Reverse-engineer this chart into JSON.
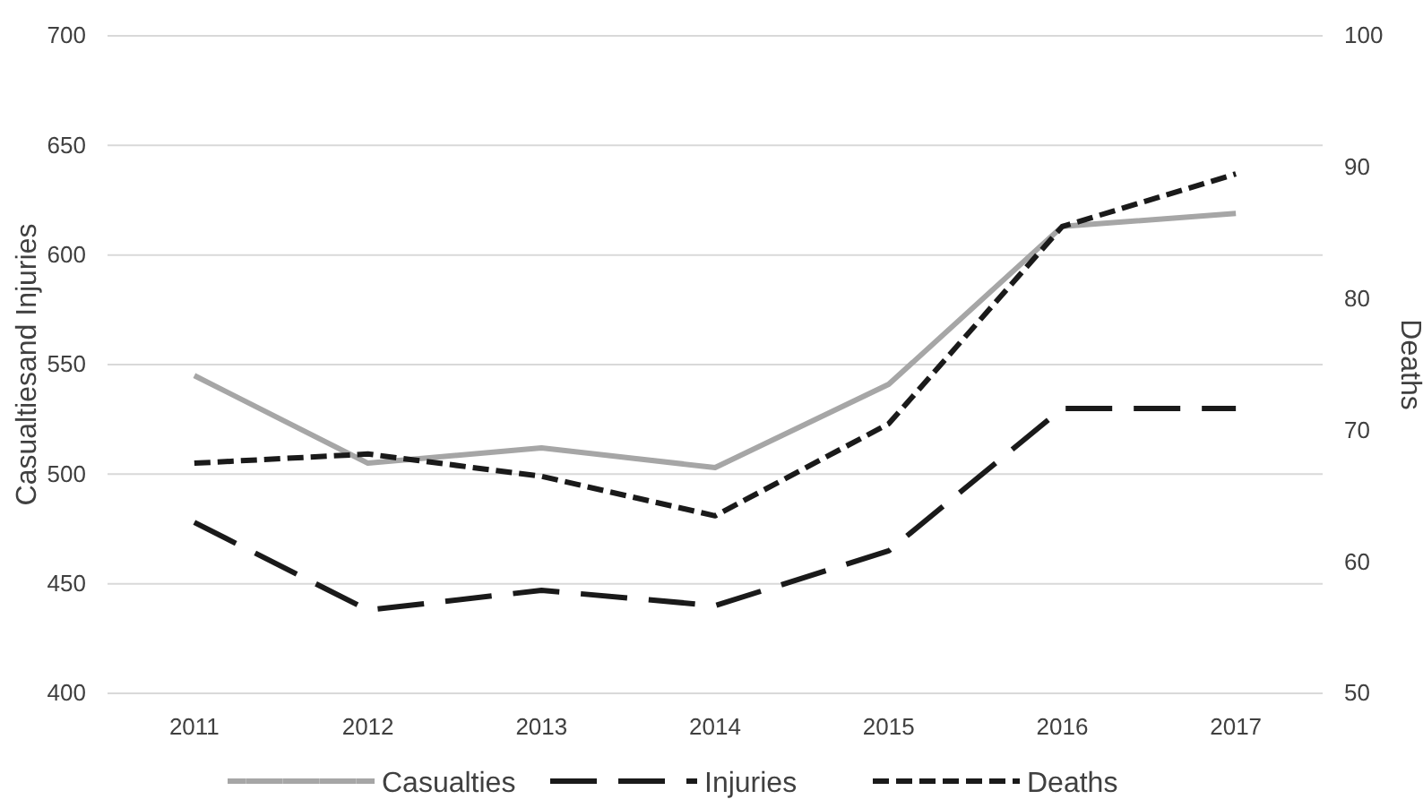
{
  "chart_data": {
    "type": "line",
    "ylabel": "Casualtiesand Injuries",
    "y2label": "Deaths",
    "categories": [
      "2011",
      "2012",
      "2013",
      "2014",
      "2015",
      "2016",
      "2017"
    ],
    "series": [
      {
        "name": "Casualties",
        "color": "#a6a6a6",
        "line_style": "solid",
        "values": [
          545,
          505,
          512,
          503,
          541,
          613,
          619
        ]
      },
      {
        "name": "Injuries",
        "color": "#1a1a1a",
        "line_style": "dashed",
        "values": [
          478,
          438,
          447,
          440,
          465,
          530,
          530
        ]
      },
      {
        "name": "Deaths",
        "color": "#1a1a1a",
        "line_style": "dotted",
        "axis": "y2",
        "values": [
          67.5,
          68.2,
          66.5,
          63.5,
          70.5,
          85.5,
          89.5
        ]
      }
    ],
    "ylim": [
      400,
      700
    ],
    "yticks": [
      400,
      450,
      500,
      550,
      600,
      650,
      700
    ],
    "y2lim": [
      50,
      100
    ],
    "y2ticks": [
      50,
      60,
      70,
      80,
      90,
      100
    ],
    "grid": "y",
    "legend": "bottom"
  }
}
